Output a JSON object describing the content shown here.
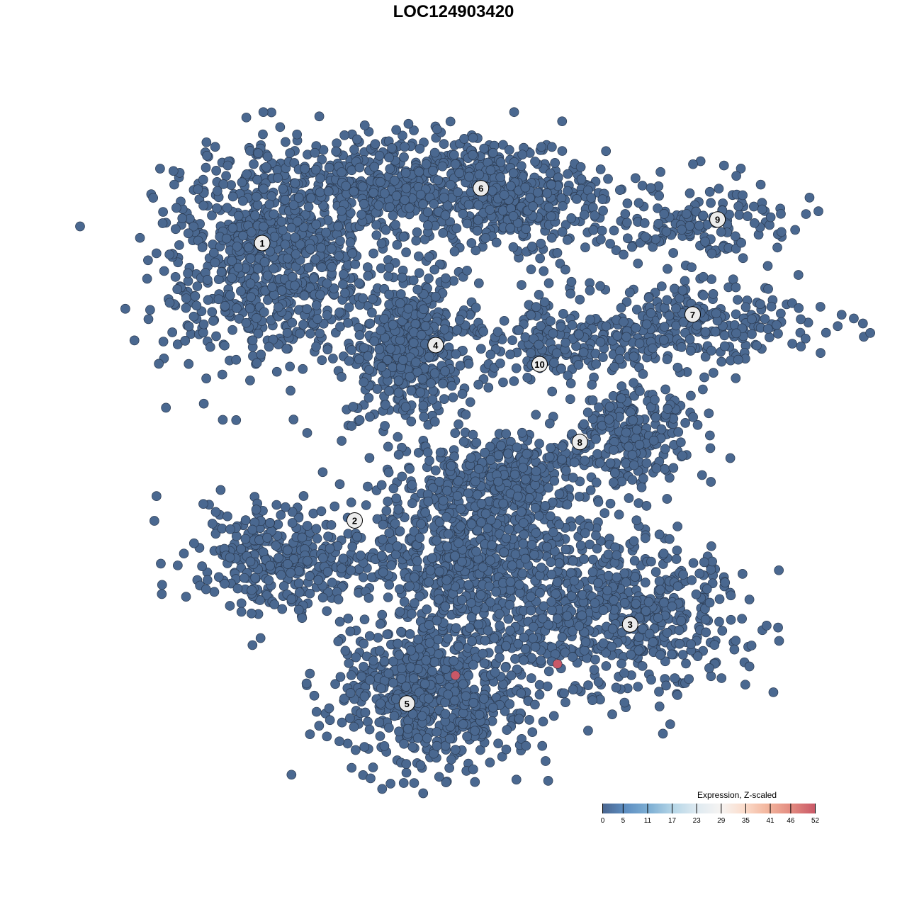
{
  "chart_data": {
    "type": "scatter",
    "title": "LOC124903420",
    "xlabel": "",
    "ylabel": "",
    "xlim": [
      -50,
      50
    ],
    "ylim": [
      -50,
      50
    ],
    "grid": false,
    "axes_visible": false,
    "point_color_default": "#4a6890",
    "point_stroke": "#2b3b52",
    "clusters": [
      {
        "label": "1",
        "label_pos": [
          -30,
          33
        ],
        "blobs": [
          {
            "center": [
              -29,
              30
            ],
            "sd": [
              8.5,
              8
            ],
            "n": 750
          }
        ]
      },
      {
        "label": "2",
        "label_pos": [
          -15.5,
          -10.5
        ],
        "blobs": [
          {
            "center": [
              -27,
              -17
            ],
            "sd": [
              7,
              4.5
            ],
            "n": 320
          }
        ]
      },
      {
        "label": "3",
        "label_pos": [
          27.7,
          -26.8
        ],
        "blobs": [
          {
            "center": [
              27,
              -25
            ],
            "sd": [
              9,
              6
            ],
            "n": 520
          }
        ]
      },
      {
        "label": "4",
        "label_pos": [
          -2.8,
          17
        ],
        "blobs": [
          {
            "center": [
              -6,
              16.5
            ],
            "sd": [
              5,
              5
            ],
            "n": 480
          }
        ]
      },
      {
        "label": "5",
        "label_pos": [
          -7.3,
          -39.2
        ],
        "blobs": [
          {
            "center": [
              -3,
              -38
            ],
            "sd": [
              8,
              5.5
            ],
            "n": 620
          },
          {
            "center": [
              4,
              -16
            ],
            "sd": [
              9,
              8
            ],
            "n": 950
          }
        ]
      },
      {
        "label": "6",
        "label_pos": [
          4.3,
          41.6
        ],
        "blobs": [
          {
            "center": [
              -6,
              42
            ],
            "sd": [
              14,
              4
            ],
            "n": 650
          },
          {
            "center": [
              9,
              38
            ],
            "sd": [
              7,
              4
            ],
            "n": 220
          }
        ]
      },
      {
        "label": "7",
        "label_pos": [
          37.5,
          21.8
        ],
        "blobs": [
          {
            "center": [
              39,
              20.5
            ],
            "sd": [
              9,
              3
            ],
            "n": 230
          },
          {
            "center": [
              25,
              18
            ],
            "sd": [
              5,
              3
            ],
            "n": 90
          }
        ]
      },
      {
        "label": "8",
        "label_pos": [
          19.8,
          1.8
        ],
        "blobs": [
          {
            "center": [
              28,
              3
            ],
            "sd": [
              6,
              4
            ],
            "n": 260
          },
          {
            "center": [
              8,
              -3
            ],
            "sd": [
              6,
              3
            ],
            "n": 200
          }
        ]
      },
      {
        "label": "9",
        "label_pos": [
          41.4,
          36.7
        ],
        "blobs": [
          {
            "center": [
              38,
              36
            ],
            "sd": [
              7,
              3
            ],
            "n": 160
          }
        ]
      },
      {
        "label": "10",
        "label_pos": [
          13.5,
          14
        ],
        "blobs": [
          {
            "center": [
              14,
              18
            ],
            "sd": [
              4,
              4
            ],
            "n": 110
          }
        ]
      }
    ],
    "highlighted_points": [
      {
        "x": 0.3,
        "y": -34.8,
        "value": 52
      },
      {
        "x": 16.3,
        "y": -33.0,
        "value": 52
      }
    ],
    "colorbar": {
      "title": "Expression, Z-scaled",
      "ticks": [
        "0",
        "5",
        "11",
        "17",
        "23",
        "29",
        "35",
        "41",
        "46",
        "52"
      ],
      "range": [
        0,
        52
      ],
      "colors": [
        "#4a6690",
        "#5e8fc2",
        "#7fb0d4",
        "#b6d6e7",
        "#dfeaf1",
        "#f6f4f2",
        "#fbdccb",
        "#f2b49c",
        "#e2897f",
        "#c95867"
      ],
      "legend_position": "bottom-right"
    }
  }
}
